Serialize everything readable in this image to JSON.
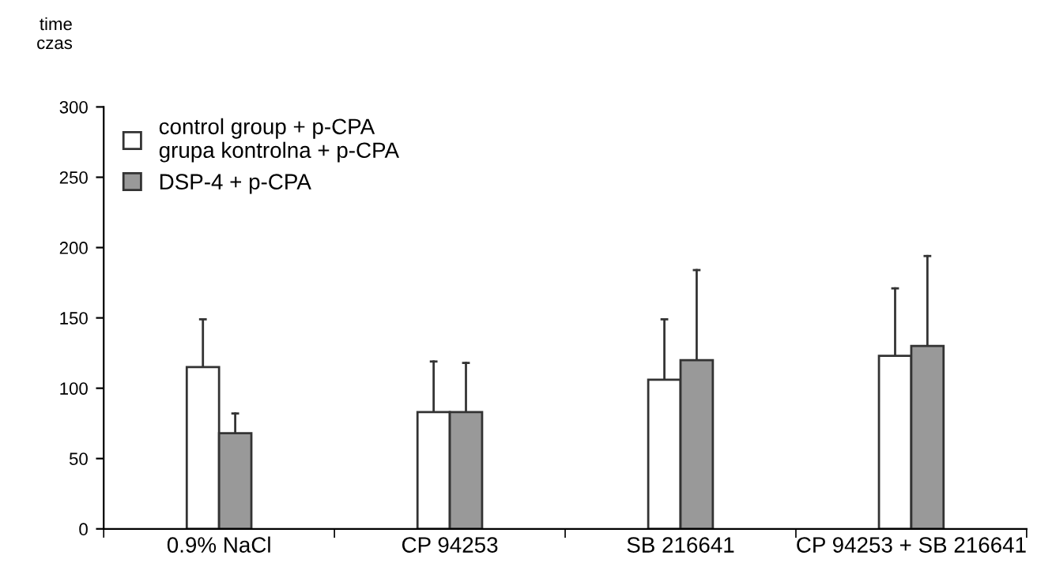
{
  "chart_data": {
    "type": "bar",
    "ylabel": "time\nczas",
    "categories": [
      "0.9% NaCl",
      "CP 94253",
      "SB 216641",
      "CP 94253 + SB 216641"
    ],
    "series": [
      {
        "name": "control group + p-CPA\ngrupa kontrolna + p-CPA",
        "color": "#ffffff",
        "values": [
          115,
          83,
          106,
          123
        ],
        "errors": [
          [
            115,
            149
          ],
          [
            83,
            119
          ],
          [
            106,
            149
          ],
          [
            123,
            171
          ]
        ]
      },
      {
        "name": "DSP-4 + p-CPA",
        "color": "#999999",
        "values": [
          68,
          83,
          120,
          130
        ],
        "errors": [
          [
            68,
            82
          ],
          [
            83,
            118
          ],
          [
            120,
            184
          ],
          [
            130,
            194
          ]
        ]
      }
    ],
    "ylim": [
      0,
      300
    ],
    "yticks": [
      0,
      50,
      100,
      150,
      200,
      250,
      300
    ],
    "grid": false,
    "legend": "top left"
  }
}
